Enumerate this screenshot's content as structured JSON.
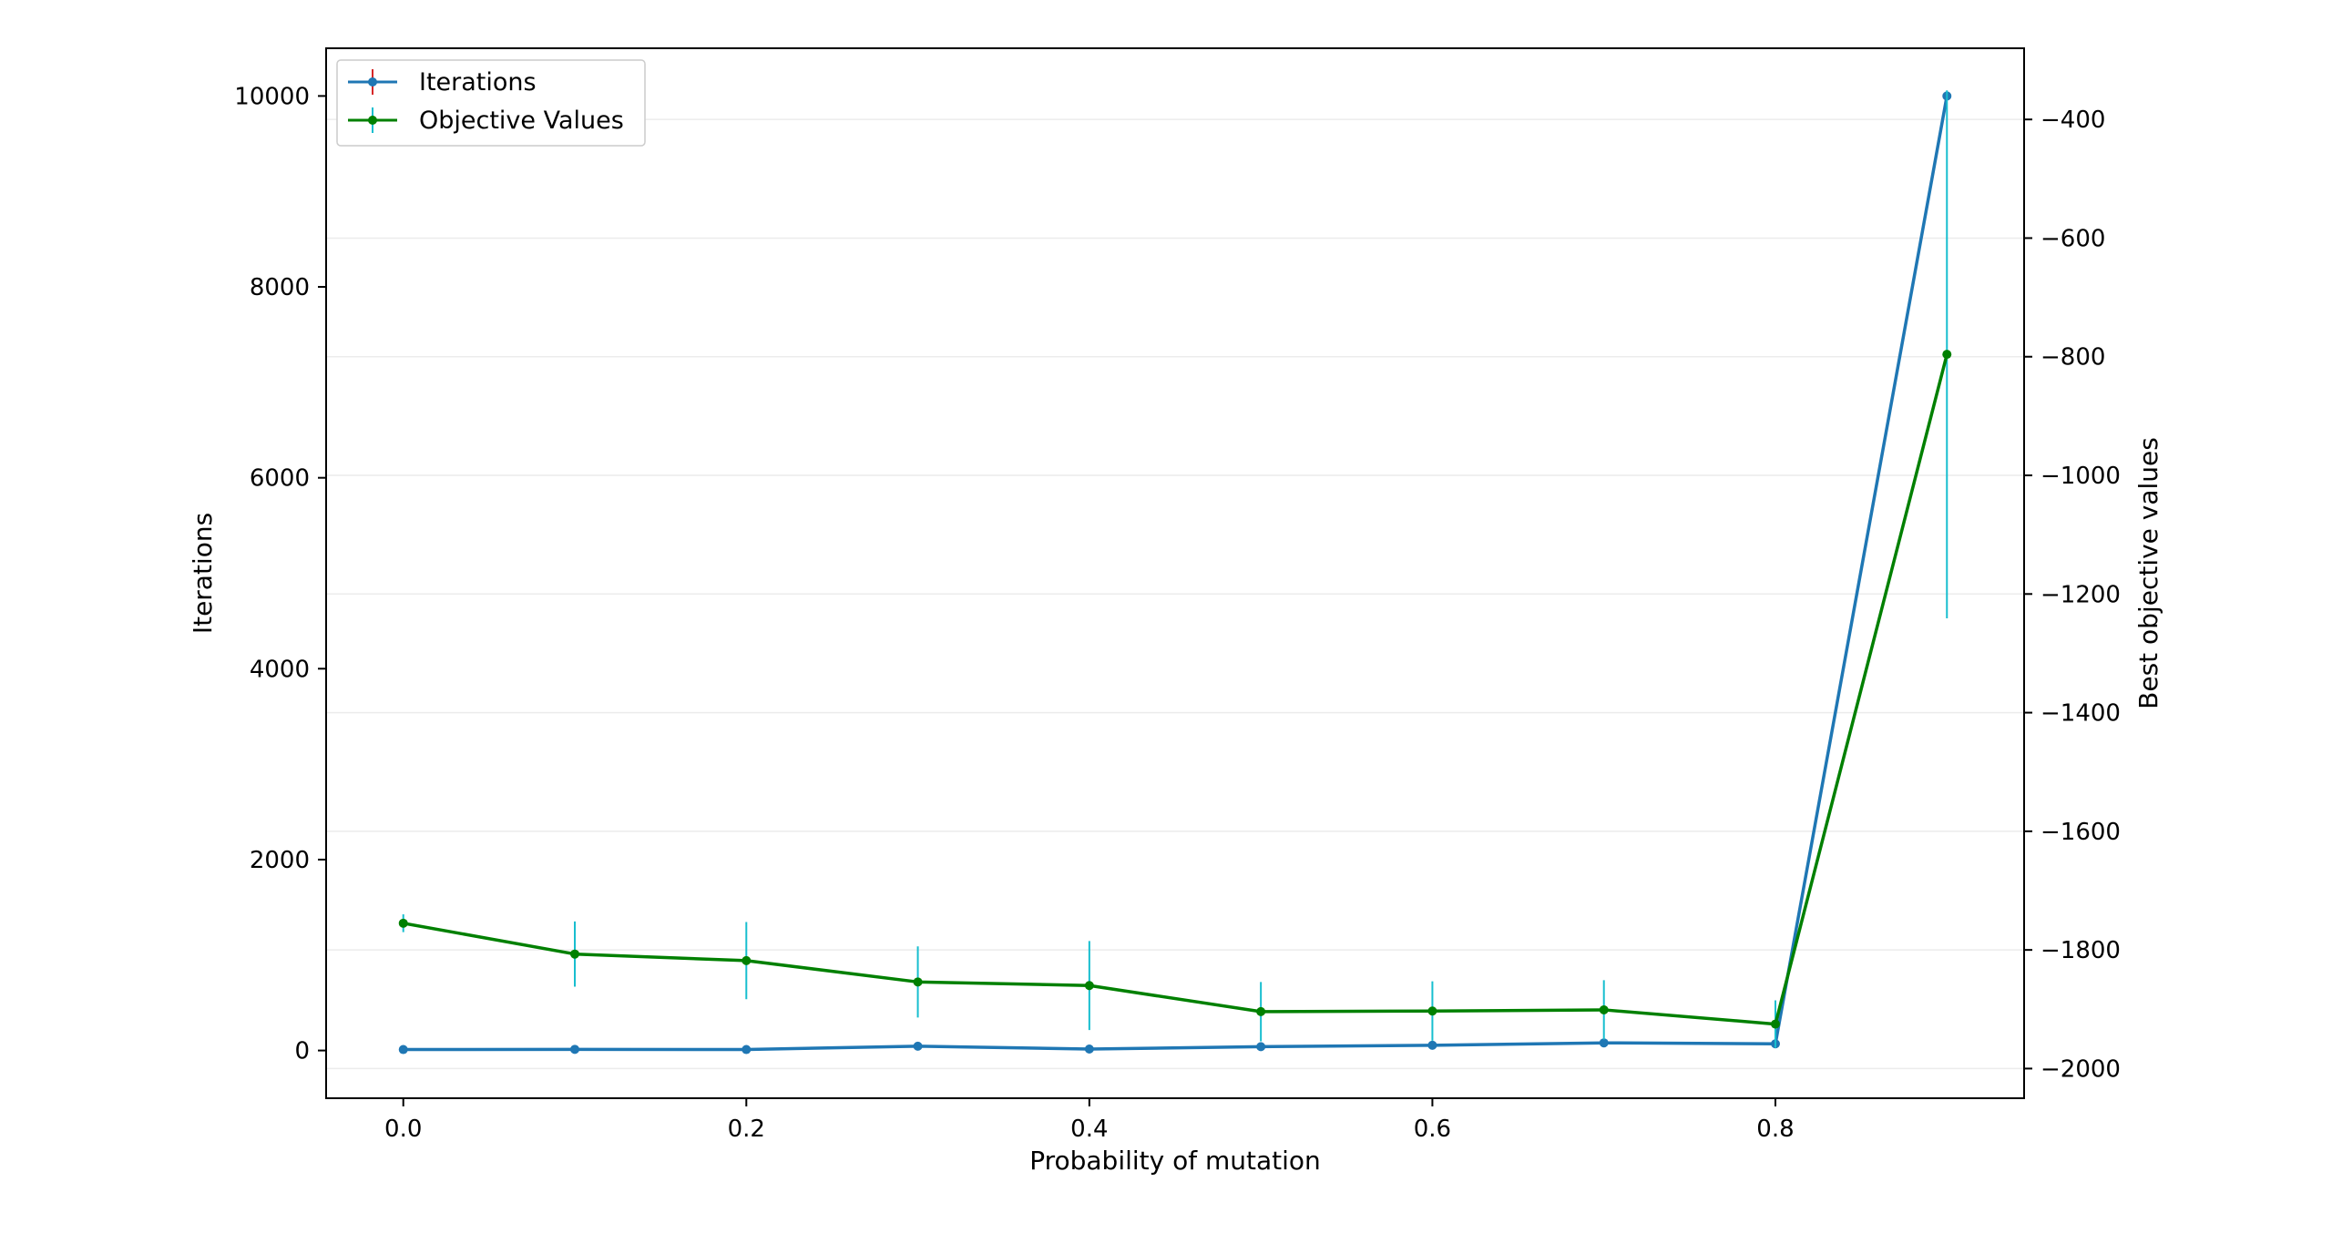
{
  "chart_data": {
    "type": "line",
    "xlabel": "Probability of mutation",
    "ylabel_left": "Iterations",
    "ylabel_right": "Best objective values",
    "xlim": [
      -0.045,
      0.945
    ],
    "ylim_left": [
      -500,
      10500
    ],
    "ylim_right": [
      -2050,
      -280
    ],
    "x_ticks": [
      0.0,
      0.2,
      0.4,
      0.6,
      0.8
    ],
    "x_tick_labels": [
      "0.0",
      "0.2",
      "0.4",
      "0.6",
      "0.8"
    ],
    "y_left_ticks": [
      0,
      2000,
      4000,
      6000,
      8000,
      10000
    ],
    "y_left_tick_labels": [
      "0",
      "2000",
      "4000",
      "6000",
      "8000",
      "10000"
    ],
    "y_right_ticks": [
      -400,
      -600,
      -800,
      -1000,
      -1200,
      -1400,
      -1600,
      -1800,
      -2000
    ],
    "y_right_tick_labels": [
      "−400",
      "−600",
      "−800",
      "−1000",
      "−1200",
      "−1400",
      "−1600",
      "−1800",
      "−2000"
    ],
    "grid": "horizontal lines at right-axis ticks",
    "legend_position": "upper-left",
    "x": [
      0.0,
      0.1,
      0.2,
      0.3,
      0.4,
      0.5,
      0.6,
      0.7,
      0.8,
      0.9
    ],
    "series": [
      {
        "name": "Iterations",
        "axis": "left",
        "color": "#1f77b4",
        "error_color": "#d62728",
        "values": [
          10,
          12,
          10,
          45,
          15,
          40,
          55,
          80,
          70,
          10000
        ],
        "errors": [
          5,
          5,
          5,
          10,
          5,
          10,
          10,
          10,
          10,
          0
        ]
      },
      {
        "name": "Objective Values",
        "axis": "right",
        "color": "#008000",
        "error_color": "#17becf",
        "values": [
          -1755,
          -1807,
          -1818,
          -1854,
          -1860,
          -1904,
          -1903,
          -1901,
          -1925,
          -796
        ],
        "errors": [
          15,
          55,
          65,
          60,
          75,
          50,
          50,
          50,
          40,
          445
        ]
      }
    ]
  }
}
